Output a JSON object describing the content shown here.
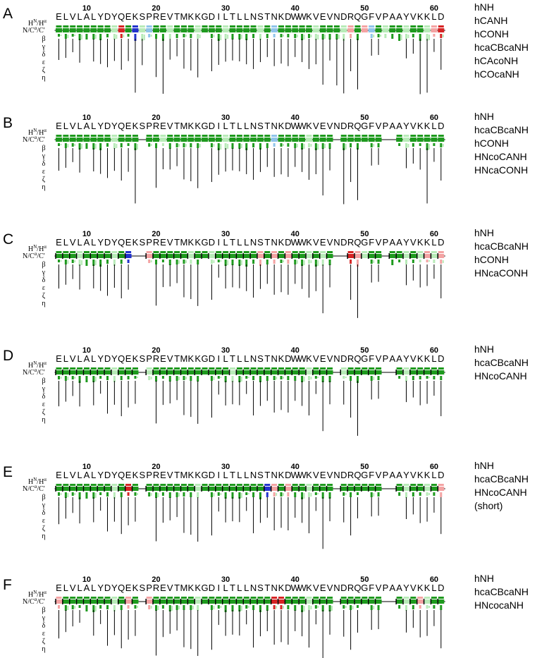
{
  "sequence": "ELVLALYDYQEKSPREVTMKKGDILTLLNSTNKDWWKVEVNDRQGFVPAAYVKKLD",
  "residue_numbers": [
    "10",
    "20",
    "30",
    "40",
    "50",
    "60"
  ],
  "row_labels": {
    "hn_ha": "H",
    "hn_ha_sup1": "N",
    "hn_ha_mid": "/H",
    "hn_ha_sup2": "α",
    "bb": "N/C",
    "bb_sup": "α",
    "bb_end": "/C'",
    "beta": "β",
    "gamma": "γ",
    "delta": "δ",
    "epsilon": "ε",
    "zeta": "ζ",
    "eta": "η"
  },
  "colors": {
    "green": "#1e9a1e",
    "light_green": "#b8ebb8",
    "pink": "#f4a3a3",
    "red": "#d62424",
    "blue": "#2233cc",
    "light_blue": "#8fc4ea",
    "black": "#000000"
  },
  "panels": [
    {
      "letter": "A",
      "experiments": [
        "hNH",
        "hCANH",
        "hCONH",
        "hcaCBcaNH",
        "hCAcoNH",
        "hCOcaNH"
      ],
      "gaps": [],
      "red": [
        9,
        55
      ],
      "pink": [
        42,
        44,
        54
      ],
      "blue": [
        11
      ],
      "light_blue": [
        13,
        31,
        45
      ],
      "light_green": [
        8,
        12,
        16,
        20,
        24,
        29,
        37,
        41,
        47,
        50,
        53
      ]
    },
    {
      "letter": "B",
      "experiments": [
        "hNH",
        "hcaCBcaNH",
        "hCONH",
        "HNcoCANH",
        "HNcaCONH"
      ],
      "gaps": [
        12,
        40,
        47,
        48
      ],
      "red": [],
      "pink": [],
      "blue": [],
      "light_blue": [
        31
      ],
      "light_green": [
        8,
        15,
        24,
        36,
        50
      ]
    },
    {
      "letter": "C",
      "experiments": [
        "hNH",
        "hcaCBcaNH",
        "hCONH",
        "HNcaCONH"
      ],
      "gaps": [
        11,
        12,
        40,
        41,
        47
      ],
      "red": [
        42
      ],
      "pink": [
        13,
        29,
        31,
        33,
        43,
        53,
        55
      ],
      "blue": [
        10
      ],
      "light_blue": [],
      "light_green": [
        3,
        8,
        19,
        22,
        36,
        38,
        44,
        50,
        52,
        54
      ]
    },
    {
      "letter": "D",
      "experiments": [
        "hNH",
        "hcaCBcaNH",
        "HNcoCANH"
      ],
      "gaps": [
        12,
        40,
        47,
        48
      ],
      "red": [],
      "pink": [],
      "blue": [],
      "light_blue": [],
      "light_green": [
        8,
        13,
        25,
        36,
        41,
        50
      ]
    },
    {
      "letter": "E",
      "experiments": [
        "hNH",
        "hcaCBcaNH",
        "HNcoCANH",
        "(short)"
      ],
      "gaps": [
        12,
        40,
        47,
        48
      ],
      "red": [
        10
      ],
      "pink": [
        31,
        33,
        55
      ],
      "blue": [
        30
      ],
      "light_blue": [],
      "light_green": [
        8,
        20,
        36,
        50,
        53
      ]
    },
    {
      "letter": "F",
      "experiments": [
        "hNH",
        "hcaCBcaNH",
        "HNcocaNH"
      ],
      "gaps": [
        12,
        40,
        47,
        48
      ],
      "red": [
        31,
        32
      ],
      "pink": [
        0,
        10,
        13,
        52
      ],
      "blue": [],
      "light_blue": [],
      "light_green": [
        8,
        20,
        36,
        50,
        53
      ]
    }
  ]
}
